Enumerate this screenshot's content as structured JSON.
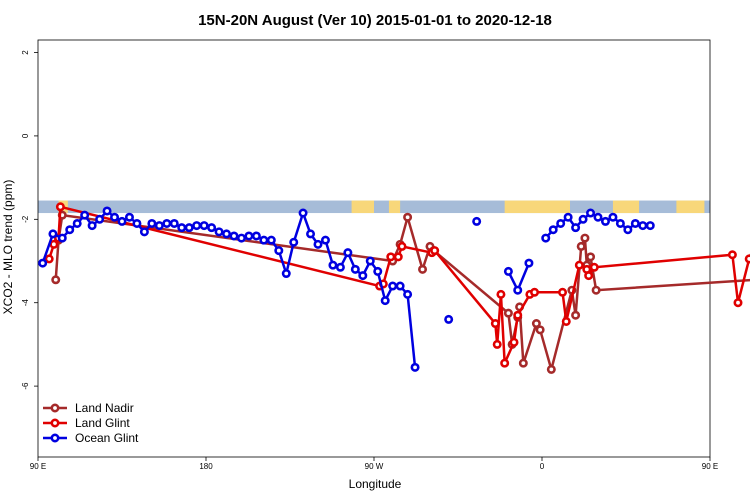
{
  "chart_data": {
    "type": "line",
    "title": "15N-20N August (Ver 10)   2015-01-01 to 2020-12-18",
    "xlabel": "Longitude",
    "ylabel": "XCO2 - MLO trend (ppm)",
    "xlim": [
      90,
      450
    ],
    "ylim": [
      -7.7,
      2.3
    ],
    "x_ticks": [
      {
        "value": 90,
        "label": "90 E"
      },
      {
        "value": 180,
        "label": "180"
      },
      {
        "value": 270,
        "label": "90 W"
      },
      {
        "value": 360,
        "label": "0"
      },
      {
        "value": 450,
        "label": "90 E"
      },
      {
        "value": 540,
        "label": "180"
      }
    ],
    "y_ticks": [
      {
        "value": 2,
        "label": "2"
      },
      {
        "value": 0,
        "label": "0"
      },
      {
        "value": -2,
        "label": "-2"
      },
      {
        "value": -4,
        "label": "-4"
      },
      {
        "value": -6,
        "label": "-6"
      }
    ],
    "land_mask": {
      "colors": {
        "ocean": "#a6bcd8",
        "land": "#f8d77a"
      },
      "y_range": [
        -1.85,
        -1.55
      ],
      "land_segments": [
        [
          101,
          106
        ],
        [
          258,
          270
        ],
        [
          278,
          284
        ],
        [
          340,
          375
        ],
        [
          398,
          412
        ],
        [
          432,
          447
        ],
        [
          472,
          477
        ],
        [
          498,
          503
        ],
        [
          528,
          533
        ],
        [
          538,
          540
        ]
      ]
    },
    "series": [
      {
        "name": "Land Nadir",
        "color": "#a52a2a",
        "points": [
          [
            99.5,
            -3.45
          ],
          [
            101,
            -2.5
          ],
          [
            103,
            -1.9
          ],
          [
            280,
            -3.0
          ],
          [
            284,
            -2.6
          ],
          [
            288,
            -1.95
          ],
          [
            296,
            -3.2
          ],
          [
            300,
            -2.65
          ],
          [
            302,
            -2.75
          ],
          [
            342,
            -4.25
          ],
          [
            344,
            -5.0
          ],
          [
            347,
            -4.35
          ],
          [
            348,
            -4.1
          ],
          [
            350,
            -5.45
          ],
          [
            357,
            -4.5
          ],
          [
            359,
            -4.65
          ],
          [
            365,
            -5.6
          ],
          [
            376,
            -3.7
          ],
          [
            378,
            -4.3
          ],
          [
            381,
            -2.65
          ],
          [
            383,
            -2.45
          ],
          [
            384,
            -3.1
          ],
          [
            386,
            -2.9
          ],
          [
            389,
            -3.7
          ],
          [
            474,
            -3.45
          ],
          [
            476,
            -2.55
          ]
        ]
      },
      {
        "name": "Land Glint",
        "color": "#e00000",
        "points": [
          [
            96,
            -2.95
          ],
          [
            98.5,
            -2.6
          ],
          [
            101,
            -2.45
          ],
          [
            102,
            -1.7
          ],
          [
            273,
            -3.6
          ],
          [
            275,
            -3.55
          ],
          [
            279,
            -2.9
          ],
          [
            283,
            -2.9
          ],
          [
            285,
            -2.65
          ],
          [
            301,
            -2.8
          ],
          [
            302.5,
            -2.75
          ],
          [
            335,
            -4.5
          ],
          [
            336,
            -5.0
          ],
          [
            338,
            -3.8
          ],
          [
            340,
            -5.45
          ],
          [
            345,
            -4.95
          ],
          [
            347,
            -4.3
          ],
          [
            353.5,
            -3.8
          ],
          [
            356,
            -3.75
          ],
          [
            371,
            -3.75
          ],
          [
            373,
            -4.45
          ],
          [
            380,
            -3.1
          ],
          [
            384,
            -3.2
          ],
          [
            385,
            -3.35
          ],
          [
            388,
            -3.15
          ],
          [
            462,
            -2.85
          ],
          [
            465,
            -4.0
          ],
          [
            471,
            -2.95
          ],
          [
            474,
            -2.6
          ],
          [
            477,
            -1.7
          ]
        ]
      },
      {
        "name": "Ocean Glint",
        "color": "#0000e0",
        "points": [
          [
            92.5,
            -3.05
          ],
          [
            98,
            -2.35
          ],
          [
            103,
            -2.45
          ],
          [
            107,
            -2.25
          ],
          [
            111,
            -2.1
          ],
          [
            115,
            -1.9
          ],
          [
            119,
            -2.15
          ],
          [
            123,
            -2.0
          ],
          [
            127,
            -1.8
          ],
          [
            131,
            -1.95
          ],
          [
            135,
            -2.05
          ],
          [
            139,
            -1.95
          ],
          [
            143,
            -2.1
          ],
          [
            147,
            -2.3
          ],
          [
            151,
            -2.1
          ],
          [
            155,
            -2.15
          ],
          [
            159,
            -2.1
          ],
          [
            163,
            -2.1
          ],
          [
            167,
            -2.2
          ],
          [
            171,
            -2.2
          ],
          [
            175,
            -2.15
          ],
          [
            179,
            -2.15
          ],
          [
            183,
            -2.2
          ],
          [
            187,
            -2.3
          ],
          [
            191,
            -2.35
          ],
          [
            195,
            -2.4
          ],
          [
            199,
            -2.45
          ],
          [
            203,
            -2.4
          ],
          [
            207,
            -2.4
          ],
          [
            211,
            -2.5
          ],
          [
            215,
            -2.5
          ],
          [
            219,
            -2.75
          ],
          [
            223,
            -3.3
          ],
          [
            227,
            -2.55
          ],
          [
            232,
            -1.85
          ],
          [
            236,
            -2.35
          ],
          [
            240,
            -2.6
          ],
          [
            244,
            -2.5
          ],
          [
            248,
            -3.1
          ],
          [
            252,
            -3.15
          ],
          [
            256,
            -2.8
          ],
          [
            260,
            -3.2
          ],
          [
            264,
            -3.35
          ],
          [
            268,
            -3.0
          ],
          [
            272,
            -3.25
          ],
          [
            276,
            -3.95
          ],
          [
            280,
            -3.6
          ],
          [
            284,
            -3.6
          ],
          [
            288,
            -3.8
          ],
          [
            292,
            -5.55
          ],
          [
            310,
            -4.4
          ],
          [
            325,
            -2.05
          ],
          [
            342,
            -3.25
          ],
          [
            347,
            -3.7
          ],
          [
            353,
            -3.05
          ],
          [
            362,
            -2.45
          ],
          [
            366,
            -2.25
          ],
          [
            370,
            -2.1
          ],
          [
            374,
            -1.95
          ],
          [
            378,
            -2.2
          ],
          [
            382,
            -2.0
          ],
          [
            386,
            -1.85
          ],
          [
            390,
            -1.95
          ],
          [
            394,
            -2.05
          ],
          [
            398,
            -1.95
          ],
          [
            402,
            -2.1
          ],
          [
            406,
            -2.25
          ],
          [
            410,
            -2.1
          ],
          [
            414,
            -2.15
          ],
          [
            418,
            -2.15
          ]
        ],
        "segments": [
          [
            0,
            50
          ],
          [
            50,
            51
          ],
          [
            51,
            52
          ],
          [
            52,
            55
          ],
          [
            55,
            70
          ]
        ]
      }
    ],
    "legend": {
      "position": "bottom-left",
      "entries": [
        "Land Nadir",
        "Land Glint",
        "Ocean Glint"
      ]
    }
  }
}
